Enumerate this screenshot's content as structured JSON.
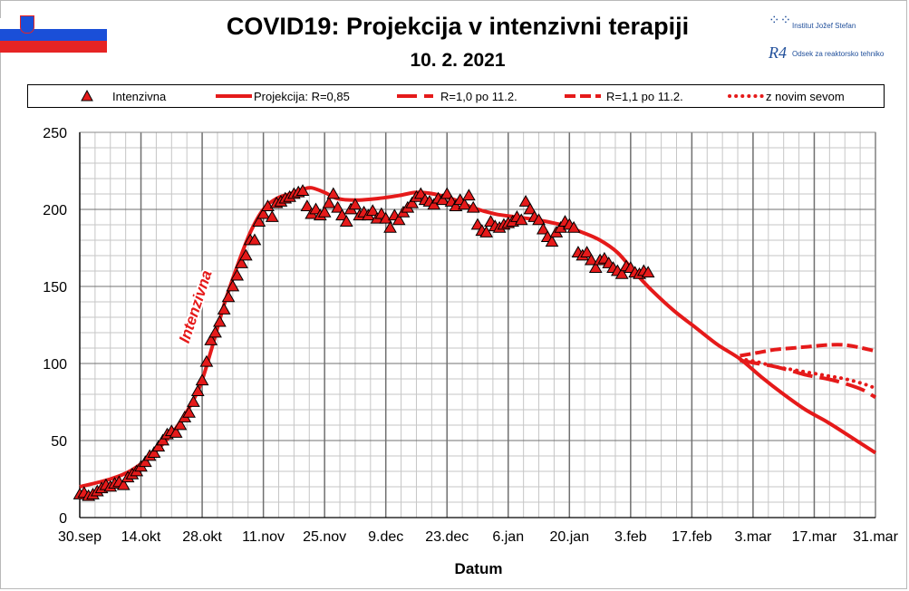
{
  "header": {
    "title": "COVID19: Projekcija v intenzivni  terapiji",
    "subtitle": "10. 2. 2021",
    "logo_ijs": "Institut Jožef Stefan",
    "logo_r4": "Odsek za reaktorsko tehniko",
    "logo_r4_mark": "R4"
  },
  "colors": {
    "series": "#e51a1a",
    "grid_minor": "#c6c6c6",
    "grid_major": "#707070",
    "flag_blue": "#1a4fd8",
    "flag_red": "#e62424"
  },
  "chart_data": {
    "type": "line",
    "xlabel": "Datum",
    "ylabel": "",
    "ylim": [
      0,
      250
    ],
    "yticks": [
      0,
      50,
      100,
      150,
      200,
      250
    ],
    "xlim": [
      "2020-09-30",
      "2021-03-31"
    ],
    "xtick_labels": [
      "30.sep",
      "14.okt",
      "28.okt",
      "11.nov",
      "25.nov",
      "9.dec",
      "23.dec",
      "6.jan",
      "20.jan",
      "3.feb",
      "17.feb",
      "3.mar",
      "17.mar",
      "31.mar"
    ],
    "xtick_dates": [
      "2020-09-30",
      "2020-10-14",
      "2020-10-28",
      "2020-11-11",
      "2020-11-25",
      "2020-12-09",
      "2020-12-23",
      "2021-01-06",
      "2021-01-20",
      "2021-02-03",
      "2021-02-17",
      "2021-03-03",
      "2021-03-17",
      "2021-03-31"
    ],
    "grid": "on",
    "legend_position": "top",
    "annotation": "Intenzivna",
    "series": [
      {
        "name": "Intenzivna",
        "style": "triangle-markers",
        "points": [
          [
            "2020-09-30",
            15
          ],
          [
            "2020-10-01",
            16
          ],
          [
            "2020-10-02",
            14
          ],
          [
            "2020-10-03",
            15
          ],
          [
            "2020-10-04",
            17
          ],
          [
            "2020-10-05",
            19
          ],
          [
            "2020-10-06",
            21
          ],
          [
            "2020-10-07",
            20
          ],
          [
            "2020-10-08",
            22
          ],
          [
            "2020-10-09",
            23
          ],
          [
            "2020-10-10",
            21
          ],
          [
            "2020-10-11",
            26
          ],
          [
            "2020-10-12",
            28
          ],
          [
            "2020-10-13",
            30
          ],
          [
            "2020-10-14",
            33
          ],
          [
            "2020-10-15",
            36
          ],
          [
            "2020-10-16",
            40
          ],
          [
            "2020-10-17",
            42
          ],
          [
            "2020-10-18",
            46
          ],
          [
            "2020-10-19",
            50
          ],
          [
            "2020-10-20",
            54
          ],
          [
            "2020-10-21",
            56
          ],
          [
            "2020-10-22",
            55
          ],
          [
            "2020-10-23",
            60
          ],
          [
            "2020-10-24",
            65
          ],
          [
            "2020-10-25",
            68
          ],
          [
            "2020-10-26",
            75
          ],
          [
            "2020-10-27",
            82
          ],
          [
            "2020-10-28",
            89
          ],
          [
            "2020-10-29",
            101
          ],
          [
            "2020-10-30",
            115
          ],
          [
            "2020-10-31",
            120
          ],
          [
            "2020-11-01",
            127
          ],
          [
            "2020-11-02",
            135
          ],
          [
            "2020-11-03",
            143
          ],
          [
            "2020-11-04",
            150
          ],
          [
            "2020-11-05",
            157
          ],
          [
            "2020-11-06",
            165
          ],
          [
            "2020-11-07",
            170
          ],
          [
            "2020-11-08",
            180
          ],
          [
            "2020-11-09",
            180
          ],
          [
            "2020-11-10",
            192
          ],
          [
            "2020-11-11",
            197
          ],
          [
            "2020-11-12",
            202
          ],
          [
            "2020-11-13",
            195
          ],
          [
            "2020-11-14",
            204
          ],
          [
            "2020-11-15",
            205
          ],
          [
            "2020-11-16",
            207
          ],
          [
            "2020-11-17",
            208
          ],
          [
            "2020-11-18",
            210
          ],
          [
            "2020-11-19",
            211
          ],
          [
            "2020-11-20",
            212
          ],
          [
            "2020-11-21",
            202
          ],
          [
            "2020-11-22",
            197
          ],
          [
            "2020-11-23",
            200
          ],
          [
            "2020-11-24",
            196
          ],
          [
            "2020-11-25",
            198
          ],
          [
            "2020-11-26",
            204
          ],
          [
            "2020-11-27",
            210
          ],
          [
            "2020-11-28",
            201
          ],
          [
            "2020-11-29",
            196
          ],
          [
            "2020-11-30",
            192
          ],
          [
            "2020-12-01",
            200
          ],
          [
            "2020-12-02",
            203
          ],
          [
            "2020-12-03",
            196
          ],
          [
            "2020-12-04",
            198
          ],
          [
            "2020-12-05",
            196
          ],
          [
            "2020-12-06",
            199
          ],
          [
            "2020-12-07",
            194
          ],
          [
            "2020-12-08",
            197
          ],
          [
            "2020-12-09",
            194
          ],
          [
            "2020-12-10",
            188
          ],
          [
            "2020-12-11",
            196
          ],
          [
            "2020-12-12",
            193
          ],
          [
            "2020-12-13",
            198
          ],
          [
            "2020-12-14",
            201
          ],
          [
            "2020-12-15",
            204
          ],
          [
            "2020-12-16",
            208
          ],
          [
            "2020-12-17",
            210
          ],
          [
            "2020-12-18",
            206
          ],
          [
            "2020-12-19",
            205
          ],
          [
            "2020-12-20",
            203
          ],
          [
            "2020-12-21",
            207
          ],
          [
            "2020-12-22",
            206
          ],
          [
            "2020-12-23",
            210
          ],
          [
            "2020-12-24",
            205
          ],
          [
            "2020-12-25",
            202
          ],
          [
            "2020-12-26",
            206
          ],
          [
            "2020-12-27",
            203
          ],
          [
            "2020-12-28",
            209
          ],
          [
            "2020-12-29",
            201
          ],
          [
            "2020-12-30",
            190
          ],
          [
            "2020-12-31",
            186
          ],
          [
            "2021-01-01",
            185
          ],
          [
            "2021-01-02",
            192
          ],
          [
            "2021-01-03",
            189
          ],
          [
            "2021-01-04",
            188
          ],
          [
            "2021-01-05",
            190
          ],
          [
            "2021-01-06",
            191
          ],
          [
            "2021-01-07",
            192
          ],
          [
            "2021-01-08",
            195
          ],
          [
            "2021-01-09",
            193
          ],
          [
            "2021-01-10",
            205
          ],
          [
            "2021-01-11",
            200
          ],
          [
            "2021-01-12",
            195
          ],
          [
            "2021-01-13",
            193
          ],
          [
            "2021-01-14",
            187
          ],
          [
            "2021-01-15",
            182
          ],
          [
            "2021-01-16",
            179
          ],
          [
            "2021-01-17",
            185
          ],
          [
            "2021-01-18",
            188
          ],
          [
            "2021-01-19",
            192
          ],
          [
            "2021-01-20",
            190
          ],
          [
            "2021-01-21",
            188
          ],
          [
            "2021-01-22",
            172
          ],
          [
            "2021-01-23",
            170
          ],
          [
            "2021-01-24",
            172
          ],
          [
            "2021-01-25",
            167
          ],
          [
            "2021-01-26",
            162
          ],
          [
            "2021-01-27",
            167
          ],
          [
            "2021-01-28",
            168
          ],
          [
            "2021-01-29",
            165
          ],
          [
            "2021-01-30",
            162
          ],
          [
            "2021-01-31",
            160
          ],
          [
            "2021-02-01",
            158
          ],
          [
            "2021-02-02",
            163
          ],
          [
            "2021-02-03",
            162
          ],
          [
            "2021-02-04",
            159
          ],
          [
            "2021-02-05",
            158
          ],
          [
            "2021-02-06",
            160
          ],
          [
            "2021-02-07",
            159
          ]
        ]
      },
      {
        "name": "Projekcija: R=0,85",
        "style": "solid",
        "points": [
          [
            "2020-09-30",
            20
          ],
          [
            "2020-10-07",
            25
          ],
          [
            "2020-10-12",
            31
          ],
          [
            "2020-10-17",
            42
          ],
          [
            "2020-10-22",
            58
          ],
          [
            "2020-10-27",
            82
          ],
          [
            "2020-10-30",
            108
          ],
          [
            "2020-11-02",
            138
          ],
          [
            "2020-11-05",
            163
          ],
          [
            "2020-11-08",
            185
          ],
          [
            "2020-11-11",
            200
          ],
          [
            "2020-11-14",
            207
          ],
          [
            "2020-11-17",
            210
          ],
          [
            "2020-11-20",
            213
          ],
          [
            "2020-11-22",
            214
          ],
          [
            "2020-11-25",
            211
          ],
          [
            "2020-11-28",
            207
          ],
          [
            "2020-12-02",
            206
          ],
          [
            "2020-12-07",
            207
          ],
          [
            "2020-12-12",
            209
          ],
          [
            "2020-12-16",
            211
          ],
          [
            "2020-12-20",
            210
          ],
          [
            "2020-12-25",
            206
          ],
          [
            "2020-12-29",
            201
          ],
          [
            "2021-01-03",
            197
          ],
          [
            "2021-01-08",
            195
          ],
          [
            "2021-01-13",
            193
          ],
          [
            "2021-01-18",
            190
          ],
          [
            "2021-01-23",
            185
          ],
          [
            "2021-01-27",
            180
          ],
          [
            "2021-01-31",
            172
          ],
          [
            "2021-02-04",
            159
          ],
          [
            "2021-02-08",
            147
          ],
          [
            "2021-02-13",
            134
          ],
          [
            "2021-02-18",
            123
          ],
          [
            "2021-02-23",
            112
          ],
          [
            "2021-02-28",
            103
          ],
          [
            "2021-03-05",
            91
          ],
          [
            "2021-03-10",
            80
          ],
          [
            "2021-03-15",
            70
          ],
          [
            "2021-03-20",
            62
          ],
          [
            "2021-03-25",
            53
          ],
          [
            "2021-03-31",
            42
          ]
        ]
      },
      {
        "name": "R=1,0 po 11.2.",
        "style": "long-dash",
        "points": [
          [
            "2021-02-28",
            102
          ],
          [
            "2021-03-04",
            100
          ],
          [
            "2021-03-08",
            98
          ],
          [
            "2021-03-12",
            95
          ],
          [
            "2021-03-16",
            92
          ],
          [
            "2021-03-20",
            90
          ],
          [
            "2021-03-24",
            87
          ],
          [
            "2021-03-28",
            83
          ],
          [
            "2021-03-31",
            78
          ]
        ]
      },
      {
        "name": "R=1,1 po 11.2.",
        "style": "dash",
        "points": [
          [
            "2021-02-28",
            105
          ],
          [
            "2021-03-04",
            107
          ],
          [
            "2021-03-08",
            109
          ],
          [
            "2021-03-12",
            110
          ],
          [
            "2021-03-16",
            111
          ],
          [
            "2021-03-20",
            112
          ],
          [
            "2021-03-24",
            112
          ],
          [
            "2021-03-28",
            110
          ],
          [
            "2021-03-31",
            108
          ]
        ]
      },
      {
        "name": "z novim sevom",
        "style": "dotted",
        "points": [
          [
            "2021-02-28",
            103
          ],
          [
            "2021-03-04",
            101
          ],
          [
            "2021-03-08",
            98
          ],
          [
            "2021-03-12",
            96
          ],
          [
            "2021-03-16",
            94
          ],
          [
            "2021-03-20",
            92
          ],
          [
            "2021-03-24",
            90
          ],
          [
            "2021-03-28",
            87
          ],
          [
            "2021-03-31",
            84
          ]
        ]
      }
    ]
  }
}
